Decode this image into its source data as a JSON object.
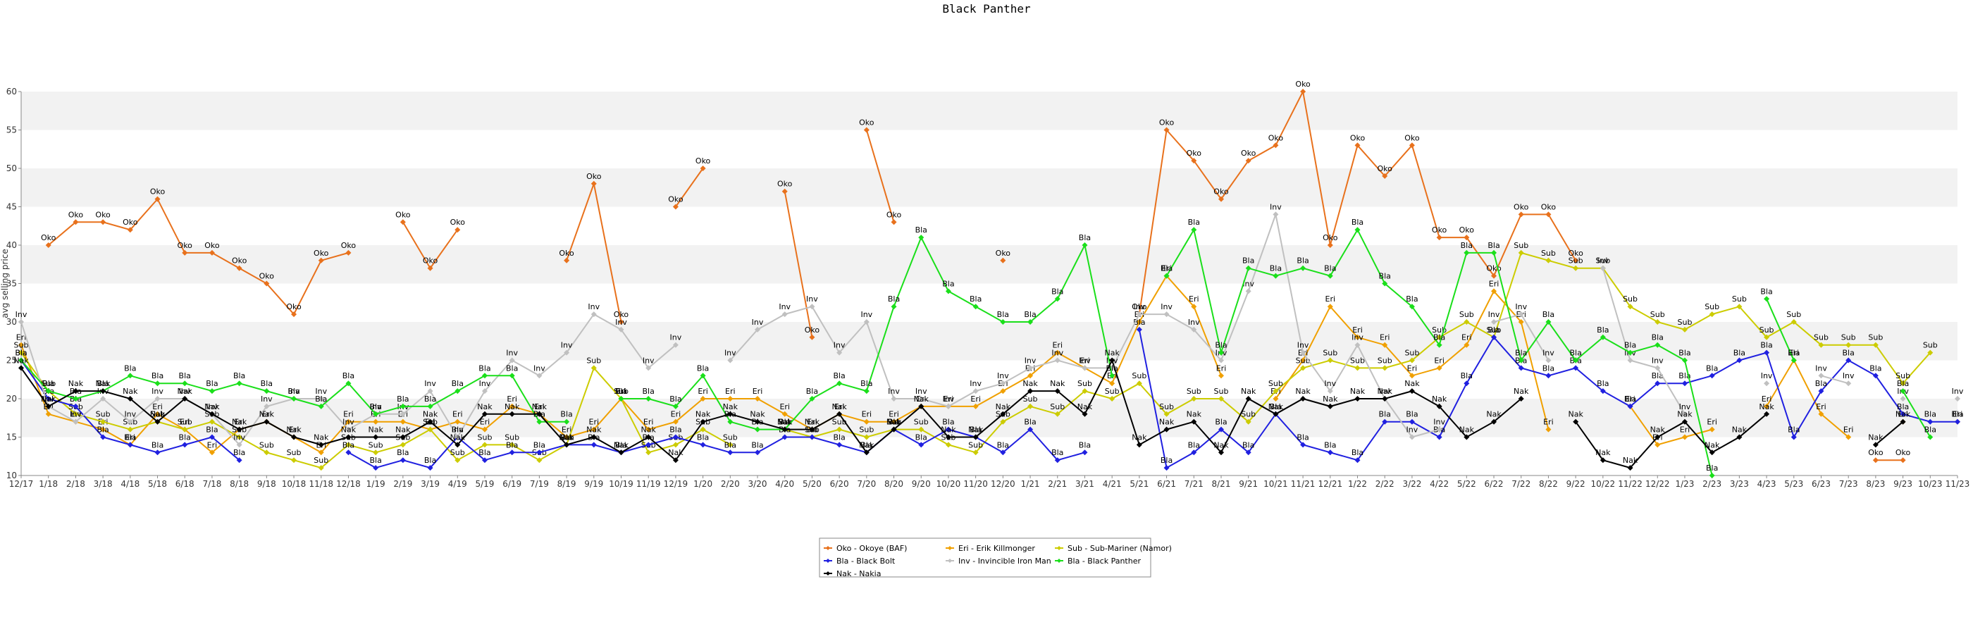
{
  "chart_data": {
    "type": "line",
    "title": "Black Panther",
    "ylabel": "avg selling price",
    "xlabel": "",
    "ylim": [
      10,
      60
    ],
    "yticks": [
      10,
      15,
      20,
      25,
      30,
      35,
      40,
      45,
      50,
      55,
      60
    ],
    "grid": "horizontal alternating bands",
    "legend_position": "bottom-center",
    "x_ticks": [
      "12/17",
      "1/18",
      "2/18",
      "3/18",
      "4/18",
      "5/18",
      "6/18",
      "7/18",
      "8/18",
      "9/18",
      "10/18",
      "11/18",
      "12/18",
      "1/19",
      "2/19",
      "3/19",
      "4/19",
      "5/19",
      "6/19",
      "7/19",
      "8/19",
      "9/19",
      "10/19",
      "11/19",
      "12/19",
      "1/20",
      "2/20",
      "3/20",
      "4/20",
      "5/20",
      "6/20",
      "7/20",
      "8/20",
      "9/20",
      "10/20",
      "11/20",
      "12/20",
      "1/21",
      "2/21",
      "3/21",
      "4/21",
      "5/21",
      "6/21",
      "7/21",
      "8/21",
      "9/21",
      "10/21",
      "11/21",
      "12/21",
      "1/22",
      "2/22",
      "3/22",
      "4/22",
      "5/22",
      "6/22",
      "7/22",
      "8/22",
      "9/22",
      "10/22",
      "11/22",
      "12/22",
      "1/23",
      "2/23",
      "3/23",
      "4/23",
      "5/23",
      "6/23",
      "7/23",
      "8/23",
      "9/23",
      "10/23",
      "11/23"
    ],
    "series": [
      {
        "name": "Oko - Okoye (BAF)",
        "label": "Oko",
        "color": "#e8711c",
        "values": [
          null,
          40,
          43,
          43,
          42,
          46,
          39,
          39,
          37,
          35,
          31,
          38,
          39,
          null,
          43,
          37,
          42,
          null,
          null,
          null,
          38,
          48,
          30,
          null,
          45,
          50,
          null,
          null,
          47,
          28,
          null,
          55,
          43,
          null,
          null,
          null,
          38,
          null,
          null,
          null,
          null,
          31,
          55,
          51,
          46,
          51,
          53,
          60,
          40,
          53,
          49,
          53,
          41,
          41,
          36,
          44,
          44,
          38,
          null,
          null,
          null,
          null,
          null,
          null,
          null,
          null,
          null,
          null,
          12,
          12,
          null,
          null
        ]
      },
      {
        "name": "Eri - Erik Killmonger",
        "label": "Eri",
        "color": "#f0a000",
        "values": [
          27,
          18,
          17,
          16,
          14,
          18,
          16,
          13,
          16,
          17,
          15,
          13,
          17,
          17,
          17,
          16,
          17,
          16,
          19,
          18,
          15,
          16,
          20,
          16,
          17,
          20,
          20,
          20,
          18,
          16,
          18,
          17,
          17,
          19,
          19,
          19,
          21,
          23,
          26,
          24,
          22,
          30,
          36,
          32,
          23,
          null,
          20,
          25,
          32,
          28,
          27,
          23,
          24,
          27,
          34,
          30,
          16,
          null,
          null,
          19,
          14,
          15,
          16,
          null,
          19,
          25,
          18,
          15,
          null,
          17,
          null,
          17
        ]
      },
      {
        "name": "Sub - Sub-Mariner (Namor)",
        "label": "Sub",
        "color": "#cccc00",
        "values": [
          26,
          21,
          18,
          17,
          16,
          17,
          16,
          17,
          15,
          13,
          12,
          11,
          14,
          13,
          14,
          16,
          12,
          14,
          14,
          12,
          14,
          24,
          20,
          13,
          14,
          16,
          14,
          null,
          16,
          15,
          16,
          15,
          16,
          16,
          14,
          13,
          17,
          19,
          18,
          21,
          20,
          22,
          18,
          20,
          20,
          17,
          21,
          24,
          25,
          24,
          24,
          25,
          28,
          30,
          28,
          39,
          38,
          37,
          37,
          32,
          30,
          29,
          31,
          32,
          28,
          30,
          27,
          27,
          27,
          22,
          26,
          null
        ]
      },
      {
        "name": "Bla - Black Bolt",
        "label": "Bla",
        "color": "#2020e0",
        "values": [
          25,
          20,
          19,
          15,
          14,
          13,
          14,
          15,
          12,
          null,
          null,
          null,
          13,
          11,
          12,
          11,
          15,
          12,
          13,
          13,
          14,
          14,
          13,
          14,
          15,
          14,
          13,
          13,
          15,
          15,
          14,
          13,
          16,
          14,
          16,
          15,
          13,
          16,
          12,
          13,
          null,
          29,
          11,
          13,
          16,
          13,
          18,
          14,
          13,
          12,
          17,
          17,
          15,
          22,
          28,
          24,
          23,
          24,
          21,
          19,
          22,
          22,
          23,
          25,
          26,
          15,
          21,
          25,
          23,
          18,
          17,
          17
        ]
      },
      {
        "name": "Inv - Invincible Iron Man",
        "label": "Inv",
        "color": "#c0c0c0",
        "values": [
          30,
          19,
          17,
          20,
          17,
          20,
          20,
          18,
          14,
          19,
          20,
          20,
          16,
          18,
          18,
          21,
          15,
          21,
          25,
          23,
          26,
          31,
          29,
          24,
          27,
          null,
          25,
          29,
          31,
          32,
          26,
          30,
          20,
          20,
          19,
          21,
          22,
          24,
          25,
          24,
          24,
          31,
          31,
          29,
          25,
          34,
          44,
          26,
          21,
          27,
          20,
          15,
          16,
          null,
          30,
          31,
          25,
          null,
          37,
          25,
          24,
          18,
          null,
          null,
          22,
          null,
          23,
          22,
          null,
          20,
          null,
          20
        ]
      },
      {
        "name": "Bla - Black Panther",
        "label": "Bla",
        "color": "#1adf1a",
        "values": [
          25,
          21,
          20,
          21,
          23,
          22,
          22,
          21,
          22,
          21,
          20,
          19,
          22,
          18,
          19,
          19,
          21,
          23,
          23,
          17,
          17,
          null,
          20,
          20,
          19,
          23,
          17,
          16,
          16,
          20,
          22,
          21,
          32,
          41,
          34,
          32,
          30,
          30,
          33,
          40,
          23,
          null,
          36,
          42,
          26,
          37,
          36,
          37,
          36,
          42,
          35,
          32,
          27,
          39,
          39,
          25,
          30,
          25,
          28,
          26,
          27,
          25,
          10,
          null,
          33,
          25,
          null,
          null,
          null,
          21,
          15,
          null
        ]
      },
      {
        "name": "Nak - Nakia",
        "label": "Nak",
        "color": "#000000",
        "values": [
          24,
          19,
          21,
          21,
          20,
          17,
          20,
          18,
          16,
          17,
          15,
          14,
          15,
          15,
          15,
          17,
          14,
          18,
          18,
          18,
          14,
          15,
          13,
          15,
          12,
          17,
          18,
          17,
          16,
          16,
          18,
          13,
          16,
          19,
          15,
          15,
          18,
          21,
          21,
          18,
          25,
          14,
          16,
          17,
          13,
          20,
          18,
          20,
          19,
          20,
          20,
          21,
          19,
          15,
          17,
          20,
          null,
          17,
          12,
          11,
          15,
          17,
          13,
          15,
          18,
          null,
          null,
          null,
          14,
          17,
          null,
          null
        ]
      }
    ]
  }
}
